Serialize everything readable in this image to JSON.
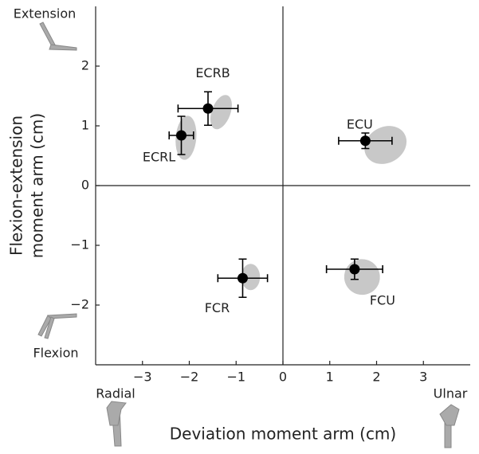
{
  "chart_data": {
    "type": "scatter",
    "xlabel": "Deviation moment arm (cm)",
    "ylabel": [
      "Flexion-extension",
      "moment arm (cm)"
    ],
    "corner_labels": {
      "extension": "Extension",
      "flexion": "Flexion",
      "radial": "Radial",
      "ulnar": "Ulnar"
    },
    "xlim": [
      -4,
      4
    ],
    "ylim": [
      -3,
      3
    ],
    "xticks": [
      {
        "value": -3,
        "label": "−3"
      },
      {
        "value": -2,
        "label": "−2"
      },
      {
        "value": -1,
        "label": "−1"
      },
      0,
      1,
      2,
      3
    ],
    "yticks": [
      {
        "value": -2,
        "label": "−2"
      },
      {
        "value": -1,
        "label": "−1"
      },
      0,
      1,
      2
    ],
    "marker_color": "#000000",
    "ellipse_color": "#c8c8c8",
    "points": [
      {
        "name": "ECRB",
        "x": -1.6,
        "y": 1.29,
        "xerr": 0.64,
        "yerr": 0.28,
        "ellipse": {
          "cx": -1.32,
          "cy": 1.23,
          "rx": 0.2,
          "ry": 0.3,
          "angle": 20
        }
      },
      {
        "name": "ECRL",
        "x": -2.17,
        "y": 0.84,
        "xerr": 0.26,
        "yerr": 0.32,
        "ellipse": {
          "cx": -2.07,
          "cy": 0.8,
          "rx": 0.22,
          "ry": 0.37,
          "angle": 5
        }
      },
      {
        "name": "ECU",
        "x": 1.76,
        "y": 0.75,
        "xerr": 0.57,
        "yerr": 0.13,
        "ellipse": {
          "cx": 2.19,
          "cy": 0.68,
          "rx": 0.47,
          "ry": 0.3,
          "angle": -30
        }
      },
      {
        "name": "FCR",
        "x": -0.86,
        "y": -1.55,
        "xerr": 0.53,
        "yerr": 0.32,
        "ellipse": {
          "cx": -0.69,
          "cy": -1.53,
          "rx": 0.2,
          "ry": 0.22,
          "angle": 0
        }
      },
      {
        "name": "FCU",
        "x": 1.53,
        "y": -1.4,
        "xerr": 0.6,
        "yerr": 0.17,
        "ellipse": {
          "cx": 1.69,
          "cy": -1.53,
          "rx": 0.38,
          "ry": 0.3,
          "angle": -50
        }
      }
    ]
  }
}
